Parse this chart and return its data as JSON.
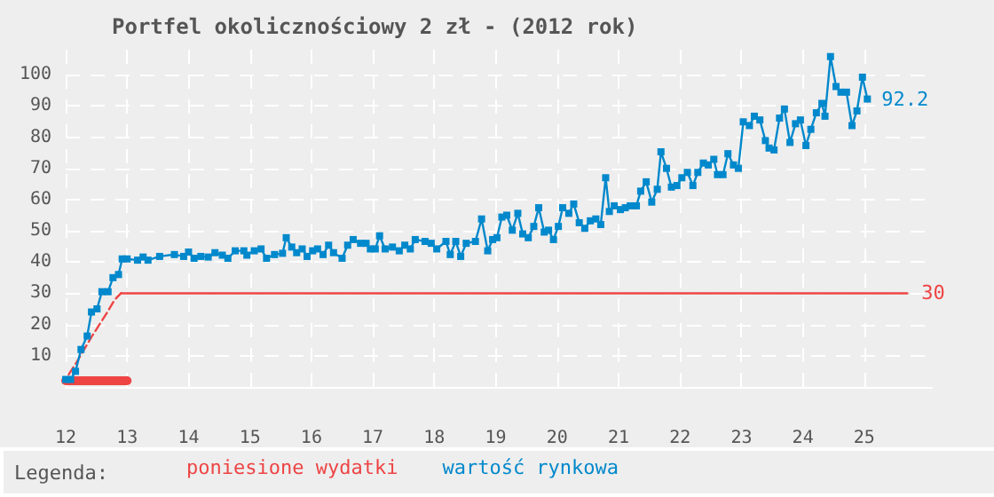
{
  "chart_data": {
    "type": "line",
    "title": "Portfel okolicznościowy 2 zł - (2012 rok)",
    "legend_title": "Legenda:",
    "legend": "bottom",
    "grid": true,
    "marker": "none",
    "xlim": [
      12,
      26.1
    ],
    "xticks": [
      12,
      13,
      14,
      15,
      16,
      17,
      18,
      19,
      20,
      21,
      22,
      23,
      24,
      25
    ],
    "ylim": [
      0,
      108
    ],
    "yticks": [
      10,
      20,
      30,
      40,
      50,
      60,
      70,
      80,
      90,
      100
    ],
    "series": [
      {
        "name": "poniesione wydatki",
        "color": "#ee4444",
        "line_style": "dashed",
        "x": [
          12.05,
          12.18,
          12.3,
          12.42,
          12.55,
          12.68,
          12.8,
          12.9
        ],
        "values": [
          4,
          8,
          12,
          16,
          20,
          24,
          28,
          30
        ]
      },
      {
        "color": "#ee4444",
        "line_style": "solid",
        "x": [
          12.9,
          25.7
        ],
        "values": [
          30,
          30
        ]
      },
      {
        "color": "#ee4444",
        "line_style": "solid",
        "x": [
          12,
          13
        ],
        "values": [
          2,
          2
        ]
      },
      {
        "name": "wartość rynkowa",
        "color": "#0088cc",
        "marker": "square",
        "line_style": "solid",
        "x": [
          12.0,
          12.08,
          12.16,
          12.25,
          12.35,
          12.42,
          12.51,
          12.59,
          12.69,
          12.77,
          12.86,
          12.92,
          13.0,
          13.17,
          13.26,
          13.34,
          13.53,
          13.77,
          13.92,
          14.0,
          14.09,
          14.2,
          14.32,
          14.43,
          14.55,
          14.64,
          14.76,
          14.9,
          14.95,
          15.07,
          15.18,
          15.27,
          15.4,
          15.53,
          15.59,
          15.68,
          15.76,
          15.85,
          15.93,
          16.02,
          16.1,
          16.19,
          16.28,
          16.36,
          16.5,
          16.59,
          16.68,
          16.8,
          16.89,
          16.96,
          17.04,
          17.11,
          17.2,
          17.32,
          17.43,
          17.52,
          17.61,
          17.69,
          17.85,
          17.95,
          18.04,
          18.19,
          18.26,
          18.35,
          18.43,
          18.52,
          18.67,
          18.77,
          18.87,
          18.95,
          19.02,
          19.1,
          19.18,
          19.27,
          19.36,
          19.44,
          19.53,
          19.62,
          19.7,
          19.79,
          19.86,
          19.94,
          20.02,
          20.09,
          20.19,
          20.27,
          20.36,
          20.45,
          20.54,
          20.63,
          20.71,
          20.79,
          20.85,
          20.93,
          21.03,
          21.11,
          21.19,
          21.29,
          21.36,
          21.45,
          21.54,
          21.63,
          21.69,
          21.78,
          21.86,
          21.95,
          22.03,
          22.12,
          22.21,
          22.29,
          22.38,
          22.46,
          22.55,
          22.61,
          22.7,
          22.78,
          22.87,
          22.95,
          23.03,
          23.13,
          23.21,
          23.3,
          23.39,
          23.45,
          23.53,
          23.62,
          23.7,
          23.79,
          23.88,
          23.96,
          24.05,
          24.13,
          24.22,
          24.31,
          24.36,
          24.45,
          24.54,
          24.62,
          24.71,
          24.8,
          24.88,
          24.97,
          25.05
        ],
        "values": [
          2.4,
          2.4,
          5,
          12,
          16.3,
          24,
          25,
          30.5,
          30.5,
          35,
          36,
          41,
          41,
          40.6,
          41.6,
          40.6,
          41.8,
          42.4,
          41.8,
          43.2,
          41.2,
          41.8,
          41.6,
          43,
          42.2,
          41.2,
          43.6,
          43.6,
          42.2,
          43.6,
          44.2,
          41.2,
          42.4,
          42.8,
          47.8,
          44.8,
          43,
          44.2,
          41.8,
          43.6,
          44.2,
          42.4,
          45.4,
          43,
          41.2,
          45.4,
          47.2,
          46,
          46,
          44.2,
          44.2,
          48.4,
          44.2,
          44.8,
          43.6,
          45.4,
          44.2,
          47.2,
          46.6,
          46,
          44.2,
          46.6,
          42.4,
          46.6,
          41.8,
          46,
          46.6,
          53.8,
          43.6,
          47.2,
          47.8,
          54.4,
          55,
          50.2,
          55.6,
          49,
          47.8,
          51.4,
          57.4,
          49.6,
          50.2,
          47.2,
          51.4,
          57.4,
          55.6,
          58.6,
          52.6,
          50.8,
          53.2,
          53.8,
          52,
          67,
          56.2,
          58,
          56.8,
          57.4,
          58,
          58,
          62.7,
          65.7,
          59.2,
          63.3,
          75.3,
          70,
          64,
          64.5,
          67,
          68.7,
          64.5,
          68.7,
          71.7,
          71.1,
          72.9,
          68,
          68,
          74.7,
          71.1,
          70,
          84.9,
          83.7,
          86.7,
          85.5,
          78.9,
          76.5,
          75.9,
          86.1,
          89,
          78.3,
          84.3,
          85.5,
          77.3,
          82.5,
          87.8,
          90.8,
          86.7,
          105.8,
          96.2,
          94.4,
          94.4,
          83.7,
          88.4,
          99.2,
          92.2
        ]
      }
    ],
    "annotations": [
      {
        "text": "92.2",
        "x": 25.05,
        "y": 92.2
      },
      {
        "text": "30",
        "x": 25.7,
        "y": 30
      }
    ]
  }
}
